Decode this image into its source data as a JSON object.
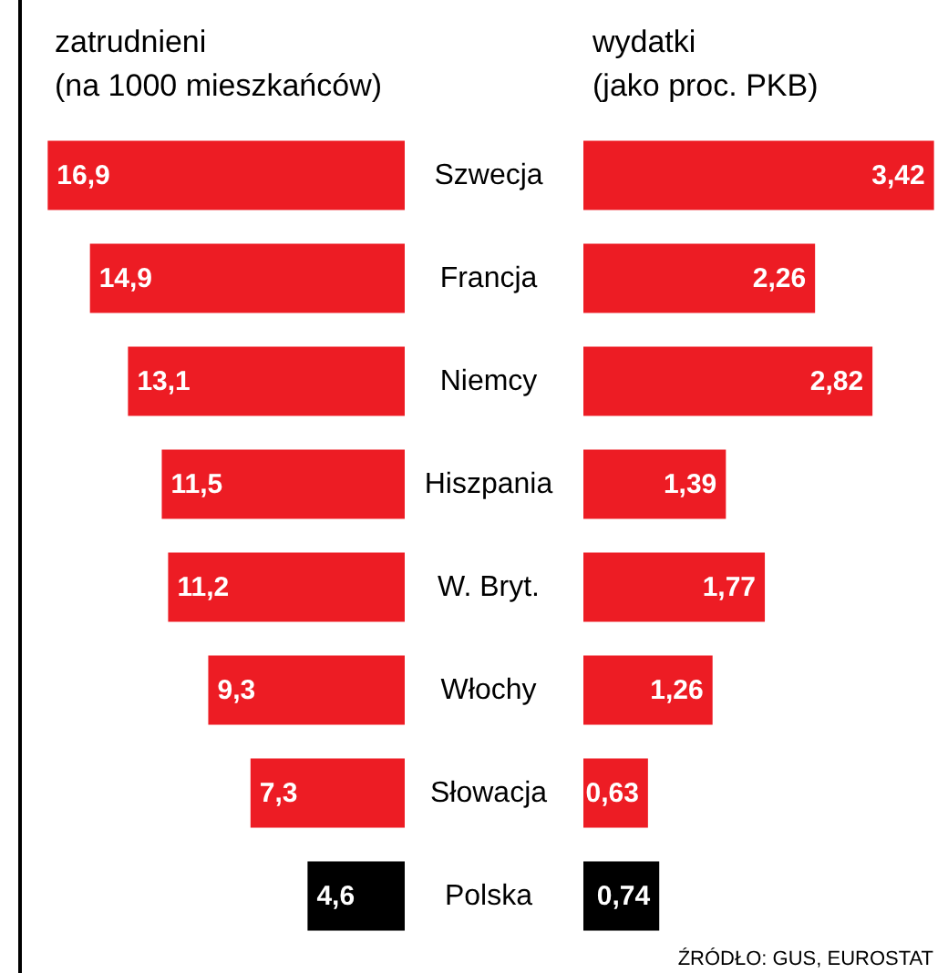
{
  "chart_data": [
    {
      "type": "bar",
      "orientation": "horizontal",
      "title": "zatrudnieni\n(na 1000 mieszkańców)",
      "categories": [
        "Szwecja",
        "Francja",
        "Niemcy",
        "Hiszpania",
        "W. Bryt.",
        "Włochy",
        "Słowacja",
        "Polska"
      ],
      "values": [
        16.9,
        14.9,
        13.1,
        11.5,
        11.2,
        9.3,
        7.3,
        4.6
      ],
      "value_labels": [
        "16,9",
        "14,9",
        "13,1",
        "11,5",
        "11,2",
        "9,3",
        "7,3",
        "4,6"
      ],
      "colors": [
        "#ed1c24",
        "#ed1c24",
        "#ed1c24",
        "#ed1c24",
        "#ed1c24",
        "#ed1c24",
        "#ed1c24",
        "#000000"
      ],
      "xlim": [
        17,
        0
      ],
      "tick_labels": "y",
      "grid": false
    },
    {
      "type": "bar",
      "orientation": "horizontal",
      "title": "wydatki\n(jako proc. PKB)",
      "values": [
        3.42,
        2.26,
        2.82,
        1.39,
        1.77,
        1.26,
        0.63,
        0.74
      ],
      "value_labels": [
        "3,42",
        "2,26",
        "2,82",
        "1,39",
        "1,77",
        "1,26",
        "0,63",
        "0,74"
      ],
      "colors": [
        "#ed1c24",
        "#ed1c24",
        "#ed1c24",
        "#ed1c24",
        "#ed1c24",
        "#ed1c24",
        "#ed1c24",
        "#000000"
      ],
      "xlim": [
        0,
        3.45
      ],
      "tick_labels": false,
      "grid": false,
      "annotations": [
        "ŹRÓDŁO: GUS, EUROSTAT"
      ]
    }
  ]
}
